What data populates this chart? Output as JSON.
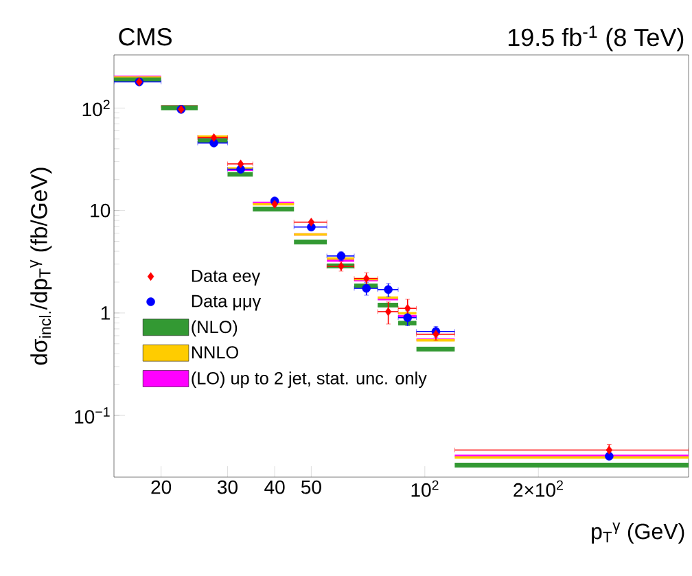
{
  "chart_data": {
    "type": "histogram",
    "title": "CMS",
    "subtitle": "19.5 fb$^{-1}$ (8 TeV)",
    "xlabel": "p$_{T}$$^{γ}$ (GeV)",
    "ylabel": "dσ$_{incl.}$/dp$_{T}$$^{γ}$ (fb/GeV)",
    "bins": [
      15,
      20,
      25,
      30,
      35,
      45,
      55,
      65,
      75,
      85,
      95,
      120,
      500
    ],
    "log": "xy",
    "xlim": [
      15,
      500
    ],
    "ylim": [
      0.025,
      330
    ],
    "xticks": [
      20,
      30,
      40,
      50,
      {
        "value": 100,
        "label": "10$^{2}$"
      },
      {
        "value": 200,
        "label": "2×10$^{2}$"
      }
    ],
    "yticks": [
      {
        "value": 0.1,
        "label": "10$^{−1}$"
      },
      1,
      10,
      {
        "value": 100,
        "label": "10$^{2}$"
      }
    ],
    "legend": "left",
    "series": [
      {
        "name": "(LO) up to 2 jet, stat. unc. only",
        "color": "#ff00ff",
        "values": [
          207,
          107,
          53,
          25.7,
          12.2,
          6.0,
          3.33,
          2.15,
          1.4,
          0.955,
          0.565,
          0.0415
        ]
      },
      {
        "name": "NNLO",
        "color": "#ffcc00",
        "values": [
          204,
          106,
          54,
          26.5,
          11.8,
          6.0,
          3.5,
          2.2,
          1.45,
          1.02,
          0.556,
          0.04
        ]
      },
      {
        "name": "(NLO)",
        "color": "#339933",
        "values": [
          200,
          106,
          50.9,
          23.8,
          10.9,
          5.2,
          3.04,
          1.94,
          1.26,
          0.84,
          0.469,
          0.0345
        ]
      },
      {
        "name": "Data μμγ",
        "type": "scatter",
        "marker": "circle",
        "color": "#0000ff",
        "x": [
          17.5,
          22.6,
          27.6,
          32.5,
          40,
          50,
          60,
          70,
          80,
          90,
          107,
          308
        ],
        "values": [
          180,
          97,
          45.6,
          25.3,
          12.4,
          6.9,
          3.6,
          1.74,
          1.69,
          0.9,
          0.66,
          0.04
        ],
        "errors": [
          null,
          null,
          null,
          null,
          null,
          null,
          0.35,
          0.25,
          0.25,
          0.15,
          0.08,
          null
        ],
        "xerrors": [
          [
            15,
            20
          ],
          null,
          [
            25,
            30
          ],
          [
            30,
            35
          ],
          null,
          [
            45,
            55
          ],
          [
            55,
            65
          ],
          [
            65,
            75
          ],
          [
            75,
            85
          ],
          [
            85,
            95
          ],
          [
            95,
            120
          ],
          null
        ]
      },
      {
        "name": "Data eeγ",
        "type": "scatter",
        "marker": "diamond",
        "color": "#ff0000",
        "x": [
          17.5,
          22.6,
          27.6,
          32.5,
          40,
          50,
          60,
          70,
          80,
          90,
          107,
          308
        ],
        "values": [
          180,
          97,
          51.5,
          28.5,
          11.5,
          7.7,
          2.86,
          2.17,
          1.03,
          1.11,
          0.62,
          0.046
        ],
        "errors": [
          null,
          null,
          null,
          null,
          null,
          null,
          0.3,
          0.3,
          0.25,
          0.25,
          0.08,
          0.006
        ],
        "xerrors": [
          null,
          null,
          [
            25,
            30
          ],
          [
            30,
            35
          ],
          null,
          [
            45,
            55
          ],
          [
            55,
            65
          ],
          [
            65,
            75
          ],
          [
            75,
            85
          ],
          [
            85,
            95
          ],
          [
            95,
            120
          ],
          [
            120,
            500
          ]
        ]
      }
    ]
  }
}
